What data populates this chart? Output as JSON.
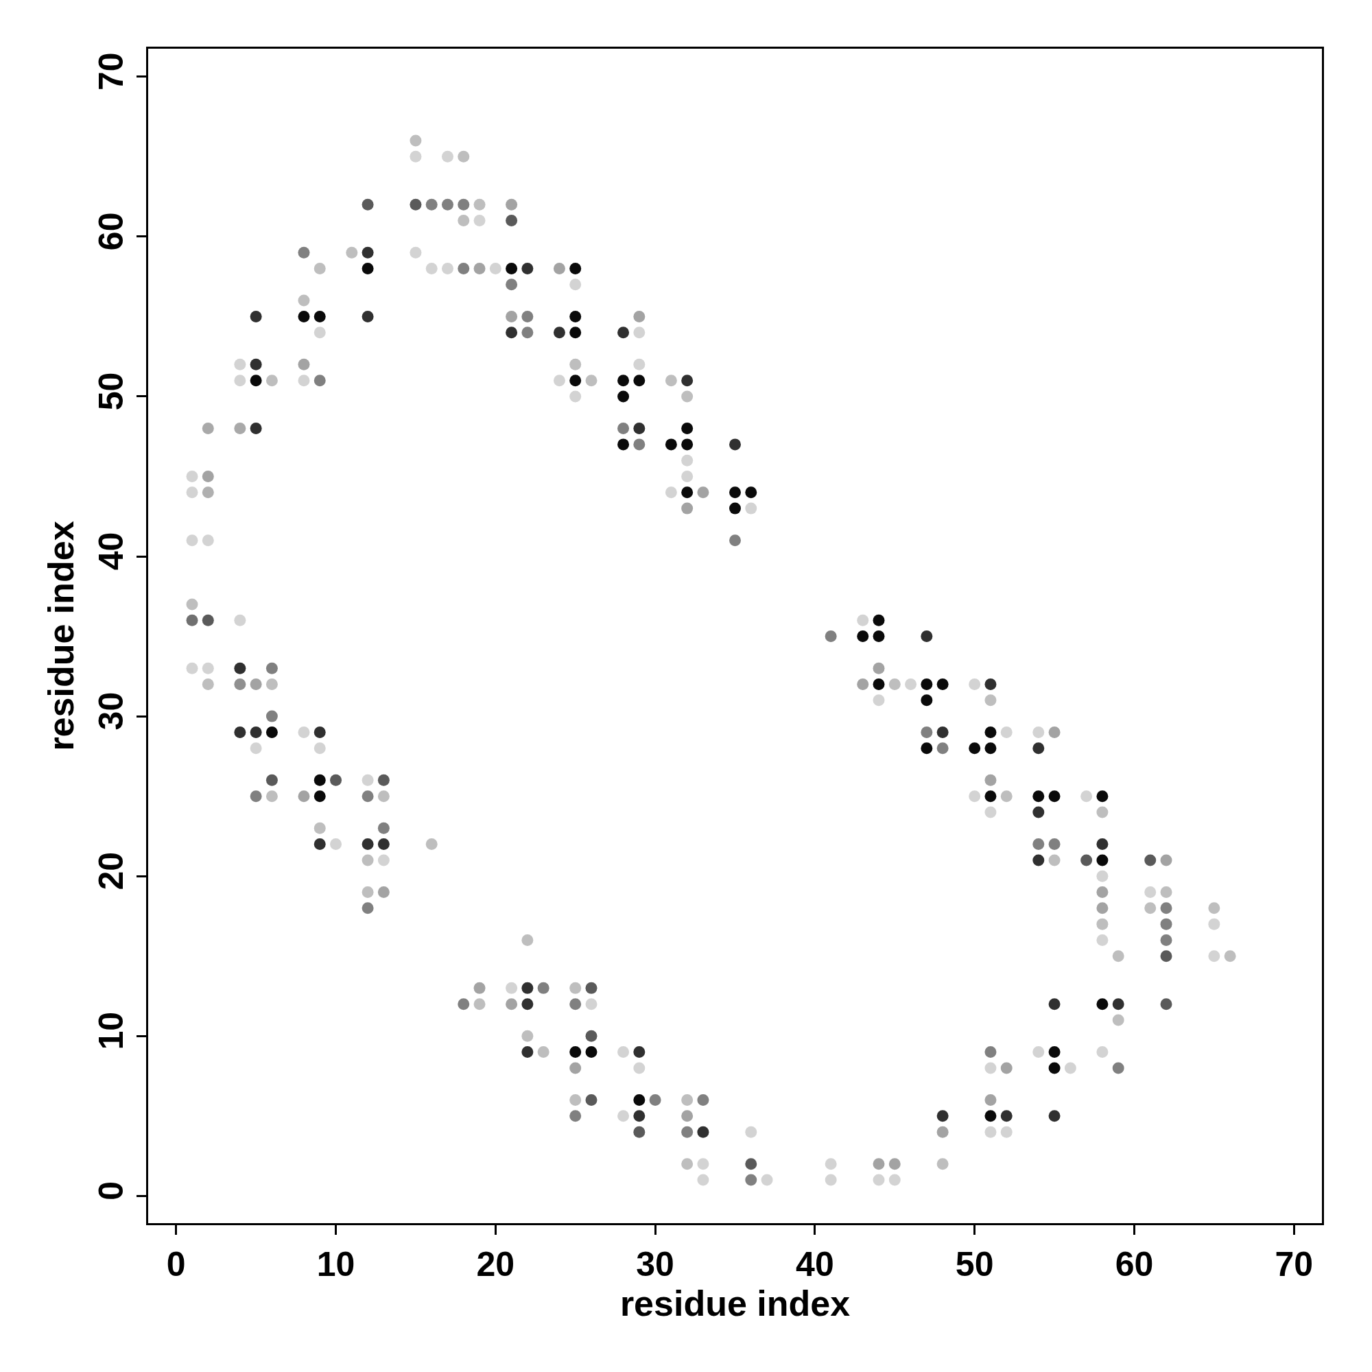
{
  "chart_data": {
    "type": "scatter",
    "xlabel": "residue index",
    "ylabel": "residue index",
    "marker": "circle",
    "xlim": [
      -1.75,
      71.75
    ],
    "ylim": [
      -1.7,
      71.75
    ],
    "xticks": [
      0,
      10,
      20,
      30,
      40,
      50,
      60,
      70
    ],
    "yticks": [
      0,
      10,
      20,
      30,
      40,
      50,
      60,
      70
    ],
    "x": [
      1,
      1,
      1,
      1,
      1,
      1,
      2,
      2,
      2,
      2,
      2,
      2,
      2,
      4,
      4,
      4,
      4,
      4,
      4,
      4,
      5,
      5,
      5,
      5,
      5,
      5,
      5,
      5,
      6,
      6,
      6,
      6,
      6,
      6,
      6,
      8,
      8,
      8,
      8,
      8,
      8,
      8,
      9,
      9,
      9,
      9,
      9,
      9,
      9,
      9,
      9,
      9,
      10,
      10,
      11,
      12,
      12,
      12,
      12,
      12,
      12,
      12,
      12,
      12,
      12,
      13,
      13,
      13,
      13,
      13,
      13,
      15,
      15,
      15,
      15,
      16,
      16,
      16,
      17,
      17,
      17,
      18,
      18,
      18,
      18,
      18,
      19,
      19,
      19,
      19,
      19,
      20,
      21,
      21,
      21,
      21,
      21,
      21,
      21,
      21,
      22,
      22,
      22,
      22,
      22,
      22,
      22,
      22,
      23,
      23,
      24,
      24,
      24,
      25,
      25,
      25,
      25,
      25,
      25,
      25,
      25,
      25,
      25,
      25,
      25,
      25,
      26,
      26,
      26,
      26,
      26,
      26,
      28,
      28,
      28,
      28,
      28,
      28,
      28,
      29,
      29,
      29,
      29,
      29,
      29,
      29,
      29,
      29,
      29,
      29,
      30,
      31,
      31,
      31,
      32,
      32,
      32,
      32,
      32,
      32,
      32,
      32,
      32,
      32,
      32,
      32,
      33,
      33,
      33,
      33,
      33,
      35,
      35,
      35,
      35,
      36,
      36,
      36,
      36,
      36,
      37,
      41,
      41,
      41,
      43,
      43,
      43,
      44,
      44,
      44,
      44,
      44,
      44,
      44,
      45,
      45,
      45,
      46,
      47,
      47,
      47,
      47,
      47,
      48,
      48,
      48,
      48,
      48,
      48,
      50,
      50,
      50,
      51,
      51,
      51,
      51,
      51,
      51,
      51,
      51,
      51,
      51,
      51,
      51,
      52,
      52,
      52,
      52,
      52,
      54,
      54,
      54,
      54,
      54,
      54,
      54,
      55,
      55,
      55,
      55,
      55,
      55,
      55,
      55,
      56,
      57,
      57,
      58,
      58,
      58,
      58,
      58,
      58,
      58,
      58,
      58,
      58,
      58,
      59,
      59,
      59,
      59,
      61,
      61,
      61,
      62,
      62,
      62,
      62,
      62,
      62,
      62,
      65,
      65,
      65,
      66
    ],
    "values": [
      45,
      44,
      41,
      37,
      36,
      33,
      48,
      45,
      44,
      41,
      36,
      33,
      32,
      52,
      51,
      48,
      36,
      33,
      32,
      29,
      55,
      52,
      51,
      48,
      32,
      29,
      28,
      25,
      51,
      33,
      32,
      30,
      29,
      26,
      25,
      59,
      56,
      55,
      52,
      51,
      29,
      25,
      58,
      55,
      54,
      51,
      29,
      28,
      26,
      25,
      23,
      22,
      26,
      22,
      59,
      62,
      59,
      58,
      55,
      26,
      25,
      22,
      21,
      19,
      18,
      26,
      25,
      23,
      22,
      21,
      19,
      66,
      65,
      62,
      59,
      62,
      58,
      22,
      65,
      62,
      58,
      65,
      62,
      61,
      58,
      12,
      62,
      61,
      58,
      13,
      12,
      58,
      62,
      61,
      58,
      57,
      55,
      54,
      13,
      12,
      58,
      55,
      54,
      16,
      13,
      12,
      10,
      9,
      13,
      9,
      58,
      54,
      51,
      58,
      57,
      55,
      54,
      52,
      51,
      50,
      13,
      12,
      9,
      8,
      6,
      5,
      51,
      13,
      12,
      10,
      9,
      6,
      54,
      51,
      50,
      48,
      47,
      9,
      5,
      55,
      54,
      52,
      51,
      48,
      47,
      9,
      8,
      6,
      5,
      4,
      6,
      51,
      47,
      44,
      51,
      50,
      48,
      47,
      46,
      45,
      44,
      43,
      6,
      5,
      4,
      2,
      44,
      6,
      4,
      2,
      1,
      47,
      44,
      43,
      41,
      44,
      43,
      4,
      2,
      1,
      1,
      35,
      2,
      1,
      36,
      35,
      32,
      36,
      35,
      33,
      32,
      31,
      2,
      1,
      32,
      2,
      1,
      32,
      35,
      32,
      31,
      29,
      28,
      32,
      29,
      28,
      5,
      4,
      2,
      32,
      28,
      25,
      32,
      31,
      29,
      28,
      26,
      25,
      24,
      9,
      8,
      6,
      5,
      4,
      29,
      25,
      8,
      5,
      4,
      29,
      28,
      25,
      24,
      22,
      21,
      9,
      29,
      25,
      22,
      21,
      12,
      9,
      8,
      5,
      8,
      25,
      21,
      25,
      24,
      22,
      21,
      20,
      19,
      18,
      17,
      16,
      12,
      9,
      15,
      12,
      11,
      8,
      21,
      19,
      18,
      21,
      19,
      18,
      17,
      16,
      15,
      12,
      18,
      17,
      15,
      15
    ],
    "colors": [
      "#d3d3d3",
      "#d3d3d3",
      "#d3d3d3",
      "#bebebe",
      "#707070",
      "#d3d3d3",
      "#a9a9a9",
      "#a3a3a3",
      "#b0b0b0",
      "#d3d3d3",
      "#5a5a5a",
      "#d3d3d3",
      "#bebebe",
      "#d3d3d3",
      "#d3d3d3",
      "#a9a9a9",
      "#d3d3d3",
      "#303030",
      "#909090",
      "#303030",
      "#303030",
      "#303030",
      "#0a0a0a",
      "#303030",
      "#a3a3a3",
      "#303030",
      "#d3d3d3",
      "#808080",
      "#bebebe",
      "#808080",
      "#bebebe",
      "#808080",
      "#0a0a0a",
      "#5a5a5a",
      "#bebebe",
      "#808080",
      "#bebebe",
      "#0a0a0a",
      "#a3a3a3",
      "#d3d3d3",
      "#d3d3d3",
      "#a3a3a3",
      "#bebebe",
      "#0a0a0a",
      "#d3d3d3",
      "#808080",
      "#303030",
      "#d3d3d3",
      "#0a0a0a",
      "#0a0a0a",
      "#bebebe",
      "#303030",
      "#5a5a5a",
      "#d3d3d3",
      "#bebebe",
      "#5a5a5a",
      "#303030",
      "#0a0a0a",
      "#303030",
      "#d3d3d3",
      "#808080",
      "#303030",
      "#bebebe",
      "#bebebe",
      "#808080",
      "#5a5a5a",
      "#bebebe",
      "#808080",
      "#303030",
      "#d3d3d3",
      "#a3a3a3",
      "#bebebe",
      "#d3d3d3",
      "#5a5a5a",
      "#d3d3d3",
      "#808080",
      "#d3d3d3",
      "#bebebe",
      "#d3d3d3",
      "#808080",
      "#d3d3d3",
      "#bebebe",
      "#808080",
      "#bebebe",
      "#808080",
      "#808080",
      "#bebebe",
      "#d3d3d3",
      "#a3a3a3",
      "#a3a3a3",
      "#bebebe",
      "#d3d3d3",
      "#a3a3a3",
      "#5a5a5a",
      "#0a0a0a",
      "#808080",
      "#a3a3a3",
      "#303030",
      "#d3d3d3",
      "#a3a3a3",
      "#303030",
      "#808080",
      "#808080",
      "#bebebe",
      "#303030",
      "#303030",
      "#bebebe",
      "#303030",
      "#808080",
      "#bebebe",
      "#a3a3a3",
      "#303030",
      "#d3d3d3",
      "#0a0a0a",
      "#d3d3d3",
      "#0a0a0a",
      "#0a0a0a",
      "#bebebe",
      "#0a0a0a",
      "#d3d3d3",
      "#bebebe",
      "#808080",
      "#0a0a0a",
      "#a3a3a3",
      "#bebebe",
      "#808080",
      "#bebebe",
      "#5a5a5a",
      "#d3d3d3",
      "#5a5a5a",
      "#0a0a0a",
      "#5a5a5a",
      "#303030",
      "#0a0a0a",
      "#0a0a0a",
      "#808080",
      "#0a0a0a",
      "#d3d3d3",
      "#d3d3d3",
      "#a3a3a3",
      "#d3d3d3",
      "#d3d3d3",
      "#0a0a0a",
      "#303030",
      "#808080",
      "#303030",
      "#d3d3d3",
      "#0a0a0a",
      "#303030",
      "#5a5a5a",
      "#808080",
      "#bebebe",
      "#0a0a0a",
      "#d3d3d3",
      "#303030",
      "#bebebe",
      "#0a0a0a",
      "#0a0a0a",
      "#d3d3d3",
      "#d3d3d3",
      "#0a0a0a",
      "#a3a3a3",
      "#bebebe",
      "#a3a3a3",
      "#808080",
      "#bebebe",
      "#a3a3a3",
      "#808080",
      "#303030",
      "#d3d3d3",
      "#d3d3d3",
      "#303030",
      "#0a0a0a",
      "#0a0a0a",
      "#808080",
      "#0a0a0a",
      "#d3d3d3",
      "#d3d3d3",
      "#5a5a5a",
      "#808080",
      "#d3d3d3",
      "#808080",
      "#d3d3d3",
      "#d3d3d3",
      "#d3d3d3",
      "#0a0a0a",
      "#a3a3a3",
      "#0a0a0a",
      "#0a0a0a",
      "#a3a3a3",
      "#0a0a0a",
      "#d3d3d3",
      "#a3a3a3",
      "#d3d3d3",
      "#bebebe",
      "#a3a3a3",
      "#d3d3d3",
      "#d3d3d3",
      "#303030",
      "#0a0a0a",
      "#0a0a0a",
      "#808080",
      "#0a0a0a",
      "#0a0a0a",
      "#303030",
      "#808080",
      "#303030",
      "#a3a3a3",
      "#bebebe",
      "#d3d3d3",
      "#0a0a0a",
      "#d3d3d3",
      "#303030",
      "#bebebe",
      "#0a0a0a",
      "#0a0a0a",
      "#a3a3a3",
      "#0a0a0a",
      "#d3d3d3",
      "#808080",
      "#d3d3d3",
      "#a3a3a3",
      "#0a0a0a",
      "#d3d3d3",
      "#d3d3d3",
      "#bebebe",
      "#a3a3a3",
      "#303030",
      "#d3d3d3",
      "#d3d3d3",
      "#303030",
      "#0a0a0a",
      "#303030",
      "#808080",
      "#303030",
      "#d3d3d3",
      "#a3a3a3",
      "#0a0a0a",
      "#808080",
      "#bebebe",
      "#303030",
      "#0a0a0a",
      "#0a0a0a",
      "#303030",
      "#d3d3d3",
      "#d3d3d3",
      "#5a5a5a",
      "#0a0a0a",
      "#bebebe",
      "#303030",
      "#0a0a0a",
      "#d3d3d3",
      "#a3a3a3",
      "#a3a3a3",
      "#bebebe",
      "#d3d3d3",
      "#0a0a0a",
      "#d3d3d3",
      "#bebebe",
      "#303030",
      "#bebebe",
      "#808080",
      "#5a5a5a",
      "#d3d3d3",
      "#bebebe",
      "#a3a3a3",
      "#bebebe",
      "#808080",
      "#808080",
      "#808080",
      "#5a5a5a",
      "#5a5a5a",
      "#bebebe",
      "#d3d3d3",
      "#d3d3d3",
      "#bebebe"
    ]
  }
}
